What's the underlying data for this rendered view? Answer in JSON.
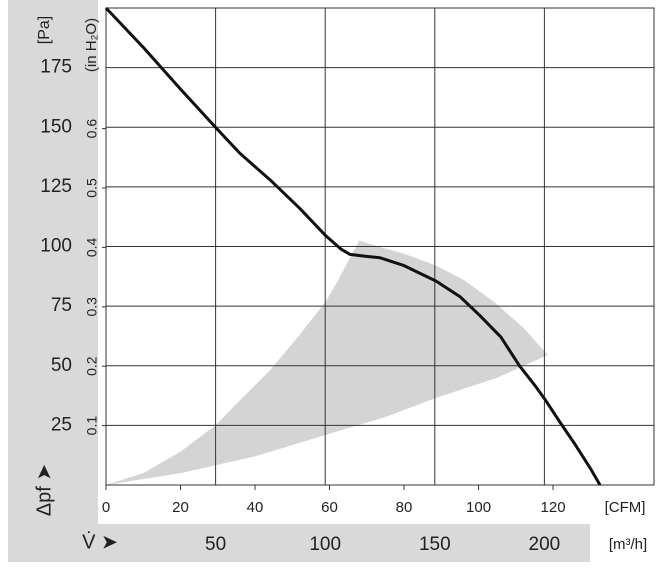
{
  "chart_data": {
    "type": "line",
    "y_label": "[Pa]",
    "y2_label": "(in H₂O)",
    "y_symbol": "Δpf ➤",
    "x_label": "[CFM]",
    "x2_label": "[m³/h]",
    "x2_symbol": "V̇ ➤",
    "xlim": [
      0,
      147.1
    ],
    "xticks": [
      0,
      20,
      40,
      60,
      80,
      100,
      120
    ],
    "x2lim": [
      0,
      250
    ],
    "x2ticks": [
      50,
      100,
      150,
      200
    ],
    "ylim": [
      0,
      200
    ],
    "yticks": [
      25,
      50,
      75,
      100,
      125,
      150,
      175
    ],
    "y2lim": [
      0,
      0.803
    ],
    "y2ticks": [
      0.1,
      0.2,
      0.3,
      0.4,
      0.5,
      0.6
    ],
    "grid": true,
    "series": [
      {
        "color": "#111111",
        "x": [
          0,
          10,
          20,
          29.4,
          36,
          44,
          52,
          59,
          63,
          65.5,
          69,
          73.5,
          80,
          88.6,
          95,
          100.4,
          106,
          111,
          115,
          118,
          122,
          126,
          130,
          132.6
        ],
        "values": [
          200,
          183.5,
          166,
          150,
          139,
          128,
          116,
          104.5,
          99,
          96.7,
          96,
          95.3,
          92,
          85.5,
          79,
          71,
          62,
          50,
          42,
          35.5,
          26,
          16.8,
          7,
          0
        ]
      }
    ],
    "region": {
      "color": "#d4d4d4",
      "x": [
        0,
        20,
        40,
        59,
        75,
        88.6,
        105,
        118.6,
        112,
        104,
        96,
        88.6,
        80,
        72,
        68,
        62,
        59,
        52,
        44,
        35,
        29.4,
        20,
        10,
        0
      ],
      "values": [
        0,
        5,
        12,
        21,
        28.5,
        36.5,
        45,
        54.5,
        66,
        77,
        86,
        92,
        97,
        100.5,
        102.5,
        85,
        77,
        63,
        48,
        34,
        25,
        14,
        5,
        0
      ]
    }
  }
}
